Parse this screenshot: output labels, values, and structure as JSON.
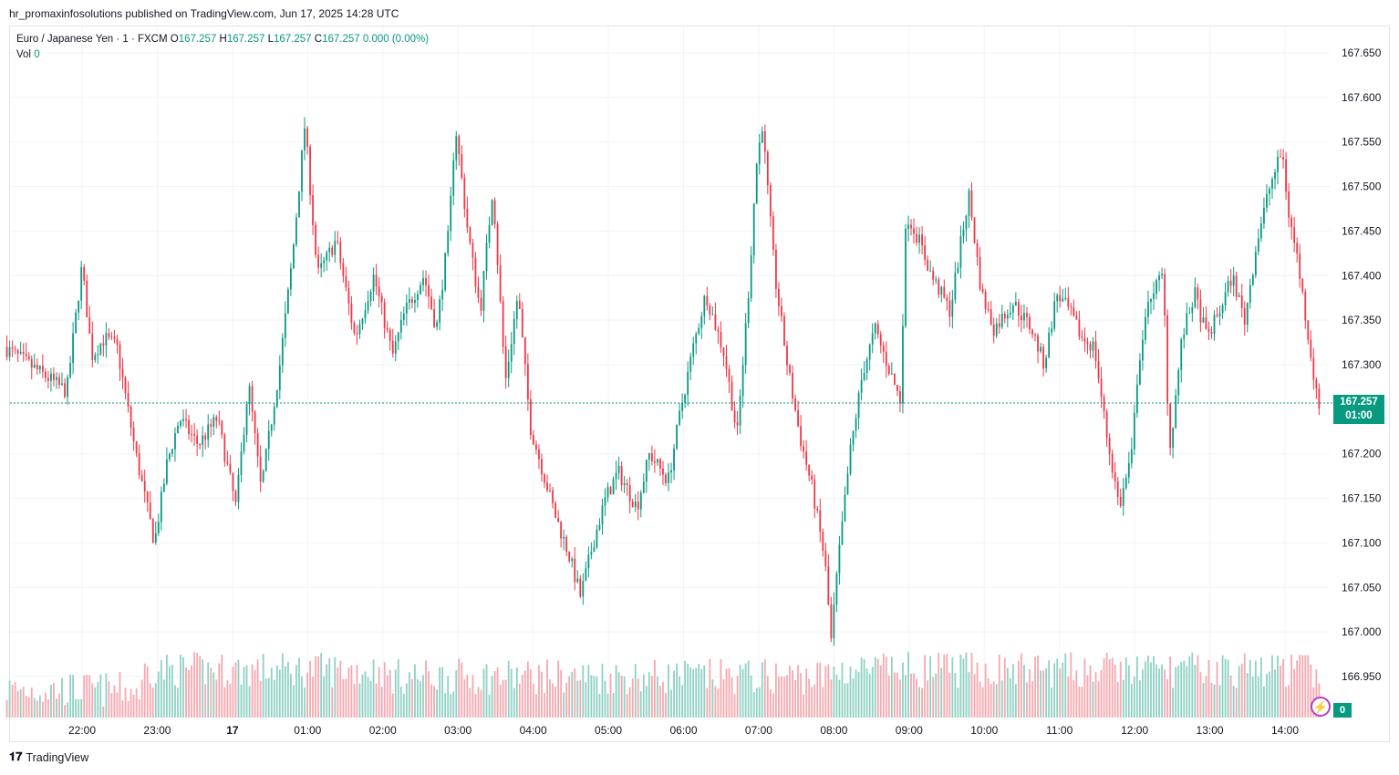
{
  "header": {
    "published_by": "hr_promaxinfosolutions published on TradingView.com, Jun 17, 2025 14:28 UTC"
  },
  "legend": {
    "symbol": "Euro / Japanese Yen · 1 · FXCM",
    "open_label": "O",
    "open": "167.257",
    "high_label": "H",
    "high": "167.257",
    "low_label": "L",
    "low": "167.257",
    "close_label": "C",
    "close": "167.257",
    "change": "0.000 (0.00%)",
    "vol_label": "Vol",
    "vol": "0"
  },
  "price_tag": {
    "price": "167.257",
    "countdown": "01:00"
  },
  "volume_tag": "0",
  "footer": {
    "brand": "TradingView"
  },
  "colors": {
    "up": "#089981",
    "down": "#f23645",
    "vol_up": "#8fd1c4",
    "vol_down": "#f5a8ae",
    "grid": "#f0f3fa"
  },
  "chart_data": {
    "type": "candlestick",
    "title": "Euro / Japanese Yen · 1 · FXCM",
    "ylabel": "",
    "xlabel": "",
    "ylim": [
      166.93,
      167.67
    ],
    "y_ticks": [
      "167.650",
      "167.600",
      "167.550",
      "167.500",
      "167.450",
      "167.400",
      "167.350",
      "167.300",
      "167.200",
      "167.150",
      "167.100",
      "167.050",
      "167.000",
      "166.950"
    ],
    "x_ticks": [
      "22:00",
      "23:00",
      "17",
      "01:00",
      "02:00",
      "03:00",
      "04:00",
      "05:00",
      "06:00",
      "07:00",
      "08:00",
      "09:00",
      "10:00",
      "11:00",
      "12:00",
      "13:00",
      "14:00"
    ],
    "last_price": 167.257,
    "anchors": [
      {
        "t": "21:00",
        "p": 167.32
      },
      {
        "t": "21:30",
        "p": 167.29
      },
      {
        "t": "21:50",
        "p": 167.27
      },
      {
        "t": "22:02",
        "p": 167.41
      },
      {
        "t": "22:10",
        "p": 167.31
      },
      {
        "t": "22:20",
        "p": 167.33
      },
      {
        "t": "22:30",
        "p": 167.32
      },
      {
        "t": "22:45",
        "p": 167.2
      },
      {
        "t": "23:00",
        "p": 167.1
      },
      {
        "t": "23:10",
        "p": 167.19
      },
      {
        "t": "23:20",
        "p": 167.24
      },
      {
        "t": "23:35",
        "p": 167.21
      },
      {
        "t": "23:50",
        "p": 167.24
      },
      {
        "t": "00:05",
        "p": 167.14
      },
      {
        "t": "00:15",
        "p": 167.28
      },
      {
        "t": "00:25",
        "p": 167.16
      },
      {
        "t": "00:40",
        "p": 167.3
      },
      {
        "t": "00:50",
        "p": 167.42
      },
      {
        "t": "01:00",
        "p": 167.57
      },
      {
        "t": "01:10",
        "p": 167.4
      },
      {
        "t": "01:25",
        "p": 167.44
      },
      {
        "t": "01:40",
        "p": 167.33
      },
      {
        "t": "01:55",
        "p": 167.4
      },
      {
        "t": "02:10",
        "p": 167.31
      },
      {
        "t": "02:20",
        "p": 167.36
      },
      {
        "t": "02:35",
        "p": 167.4
      },
      {
        "t": "02:45",
        "p": 167.34
      },
      {
        "t": "02:55",
        "p": 167.45
      },
      {
        "t": "03:00",
        "p": 167.57
      },
      {
        "t": "03:10",
        "p": 167.45
      },
      {
        "t": "03:20",
        "p": 167.36
      },
      {
        "t": "03:30",
        "p": 167.5
      },
      {
        "t": "03:40",
        "p": 167.28
      },
      {
        "t": "03:50",
        "p": 167.38
      },
      {
        "t": "04:00",
        "p": 167.23
      },
      {
        "t": "04:10",
        "p": 167.18
      },
      {
        "t": "04:20",
        "p": 167.13
      },
      {
        "t": "04:30",
        "p": 167.09
      },
      {
        "t": "04:40",
        "p": 167.04
      },
      {
        "t": "04:50",
        "p": 167.1
      },
      {
        "t": "05:00",
        "p": 167.15
      },
      {
        "t": "05:10",
        "p": 167.18
      },
      {
        "t": "05:25",
        "p": 167.14
      },
      {
        "t": "05:35",
        "p": 167.2
      },
      {
        "t": "05:50",
        "p": 167.17
      },
      {
        "t": "06:00",
        "p": 167.25
      },
      {
        "t": "06:10",
        "p": 167.32
      },
      {
        "t": "06:20",
        "p": 167.38
      },
      {
        "t": "06:35",
        "p": 167.31
      },
      {
        "t": "06:45",
        "p": 167.22
      },
      {
        "t": "06:55",
        "p": 167.4
      },
      {
        "t": "07:00",
        "p": 167.52
      },
      {
        "t": "07:05",
        "p": 167.57
      },
      {
        "t": "07:15",
        "p": 167.4
      },
      {
        "t": "07:25",
        "p": 167.3
      },
      {
        "t": "07:35",
        "p": 167.22
      },
      {
        "t": "07:45",
        "p": 167.16
      },
      {
        "t": "07:55",
        "p": 167.08
      },
      {
        "t": "08:00",
        "p": 166.99
      },
      {
        "t": "08:05",
        "p": 167.07
      },
      {
        "t": "08:15",
        "p": 167.2
      },
      {
        "t": "08:25",
        "p": 167.29
      },
      {
        "t": "08:35",
        "p": 167.34
      },
      {
        "t": "08:45",
        "p": 167.3
      },
      {
        "t": "08:55",
        "p": 167.26
      },
      {
        "t": "09:00",
        "p": 167.47
      },
      {
        "t": "09:10",
        "p": 167.44
      },
      {
        "t": "09:20",
        "p": 167.4
      },
      {
        "t": "09:35",
        "p": 167.36
      },
      {
        "t": "09:45",
        "p": 167.45
      },
      {
        "t": "09:50",
        "p": 167.49
      },
      {
        "t": "10:00",
        "p": 167.38
      },
      {
        "t": "10:10",
        "p": 167.34
      },
      {
        "t": "10:25",
        "p": 167.37
      },
      {
        "t": "10:40",
        "p": 167.34
      },
      {
        "t": "10:50",
        "p": 167.3
      },
      {
        "t": "11:00",
        "p": 167.38
      },
      {
        "t": "11:10",
        "p": 167.36
      },
      {
        "t": "11:20",
        "p": 167.33
      },
      {
        "t": "11:30",
        "p": 167.32
      },
      {
        "t": "11:40",
        "p": 167.22
      },
      {
        "t": "11:50",
        "p": 167.14
      },
      {
        "t": "12:00",
        "p": 167.2
      },
      {
        "t": "12:05",
        "p": 167.3
      },
      {
        "t": "12:15",
        "p": 167.38
      },
      {
        "t": "12:25",
        "p": 167.4
      },
      {
        "t": "12:30",
        "p": 167.2
      },
      {
        "t": "12:40",
        "p": 167.33
      },
      {
        "t": "12:50",
        "p": 167.38
      },
      {
        "t": "13:00",
        "p": 167.33
      },
      {
        "t": "13:10",
        "p": 167.36
      },
      {
        "t": "13:20",
        "p": 167.4
      },
      {
        "t": "13:30",
        "p": 167.35
      },
      {
        "t": "13:40",
        "p": 167.44
      },
      {
        "t": "13:50",
        "p": 167.5
      },
      {
        "t": "14:00",
        "p": 167.54
      },
      {
        "t": "14:05",
        "p": 167.47
      },
      {
        "t": "14:12",
        "p": 167.42
      },
      {
        "t": "14:18",
        "p": 167.36
      },
      {
        "t": "14:24",
        "p": 167.3
      },
      {
        "t": "14:28",
        "p": 167.257
      }
    ],
    "volume_scale": 0.08
  }
}
